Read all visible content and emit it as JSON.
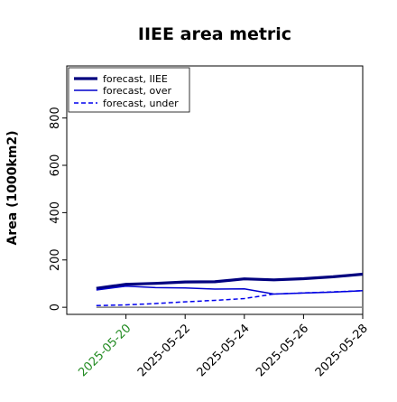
{
  "chart_data": {
    "type": "line",
    "title": "IIEE area metric",
    "xlabel": "",
    "ylabel": "Area (1000km2)",
    "x": [
      "2025-05-19",
      "2025-05-20",
      "2025-05-21",
      "2025-05-22",
      "2025-05-23",
      "2025-05-24",
      "2025-05-25",
      "2025-05-26",
      "2025-05-27",
      "2025-05-28"
    ],
    "x_ticks": [
      "2025-05-20",
      "2025-05-22",
      "2025-05-24",
      "2025-05-26",
      "2025-05-28"
    ],
    "x_tick_colors": [
      "#228B22",
      "#000000",
      "#000000",
      "#000000",
      "#000000"
    ],
    "x_range": [
      "2025-05-18",
      "2025-05-28"
    ],
    "ylim": [
      -30,
      1020
    ],
    "y_ticks": [
      0,
      200,
      400,
      600,
      800
    ],
    "grid": false,
    "legend_position": "top-left",
    "baseline": 0,
    "series": [
      {
        "name": "forecast, IIEE",
        "color": "#00007f",
        "style": "solid",
        "width": 3.2,
        "values": [
          80,
          97,
          101,
          107,
          108,
          120,
          116,
          121,
          129,
          140
        ]
      },
      {
        "name": "forecast, over",
        "color": "#0000cc",
        "style": "solid",
        "width": 1.5,
        "values": [
          73,
          89,
          83,
          82,
          77,
          78,
          56,
          60,
          64,
          70
        ]
      },
      {
        "name": "forecast, under",
        "color": "#0000ee",
        "style": "dashed",
        "width": 1.5,
        "values": [
          7,
          10,
          16,
          23,
          29,
          37,
          56,
          61,
          65,
          70
        ]
      }
    ]
  }
}
